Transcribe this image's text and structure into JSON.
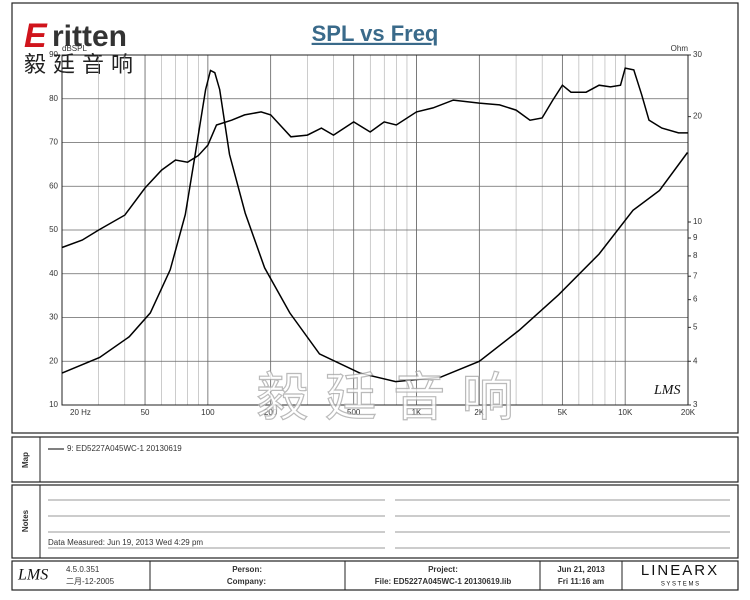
{
  "header": {
    "logo_mark": "E",
    "logo": "ritten",
    "logo_sub": "毅 廷 音 响",
    "watermark": "毅 廷 音 响"
  },
  "chart_data": {
    "type": "line",
    "title": "SPL vs Freq",
    "ylabel": "dBSPL",
    "y2label": "Ohm",
    "corner_mark": "LMS",
    "log_x": true,
    "log_y2": true,
    "grid": true,
    "xlim": [
      20,
      20000
    ],
    "xticks": [
      {
        "value": 20,
        "label": "20 Hz"
      },
      50,
      100,
      200,
      500,
      {
        "value": 1000,
        "label": "1K"
      },
      {
        "value": 2000,
        "label": "2K"
      },
      {
        "value": 5000,
        "label": "5K"
      },
      {
        "value": 10000,
        "label": "10K"
      },
      {
        "value": 20000,
        "label": "20K"
      }
    ],
    "ylim": [
      10,
      90
    ],
    "yticks": [
      10,
      20,
      30,
      40,
      50,
      60,
      70,
      80,
      90
    ],
    "y2lim": [
      3,
      30
    ],
    "y2ticks": [
      3,
      4,
      5,
      6,
      7,
      8,
      9,
      10,
      20,
      30
    ],
    "series": [
      {
        "color": "#000000",
        "x": [
          20,
          25,
          30,
          40,
          50,
          60,
          70,
          80,
          90,
          100,
          110,
          130,
          150,
          180,
          200,
          250,
          300,
          350,
          400,
          500,
          600,
          700,
          800,
          1000,
          1200,
          1500,
          2000,
          2500,
          3000,
          3500,
          4000,
          4500,
          5000,
          5500,
          6500,
          7500,
          8500,
          9500,
          10000,
          11000,
          12000,
          13000,
          15000,
          18000,
          20000
        ],
        "values": [
          46,
          47.7,
          50,
          53.4,
          59.6,
          63.7,
          66,
          65.5,
          67,
          69.4,
          74,
          75.1,
          76.3,
          77,
          76.3,
          71.3,
          71.7,
          73.3,
          71.7,
          74.7,
          72.4,
          74.7,
          74,
          77,
          77.9,
          79.7,
          79,
          78.6,
          77.4,
          75.1,
          75.6,
          79.7,
          83.1,
          81.5,
          81.5,
          83.1,
          82.7,
          83.1,
          87,
          86.6,
          80.9,
          75.1,
          73.3,
          72.2,
          72.2
        ]
      },
      {
        "color": "#000000",
        "axis": "y2",
        "x": [
          20,
          30.3,
          42,
          53,
          66,
          78,
          87,
          97.5,
          103,
          108,
          114,
          127,
          151,
          187,
          247,
          343,
          535,
          794,
          1300,
          2000,
          3100,
          4800,
          7500,
          10900,
          14600,
          19900
        ],
        "values": [
          3.7,
          4.1,
          4.7,
          5.5,
          7.3,
          10.5,
          15.6,
          23.9,
          27.1,
          26.7,
          23.9,
          15.6,
          10.6,
          7.4,
          5.5,
          4.2,
          3.7,
          3.5,
          3.6,
          4.0,
          4.9,
          6.2,
          8.1,
          10.8,
          12.3,
          15.8
        ]
      }
    ]
  },
  "map": {
    "label": "Map",
    "legend": "9: ED5227A045WC-1  20130619"
  },
  "notes": {
    "label": "Notes",
    "text": "Data Measured: Jun 19, 2013  Wed  4:29 pm"
  },
  "footer": {
    "logo": "LMS",
    "version": "4.5.0.351",
    "build_date": "二月-12-2005",
    "person": "Person:",
    "company": "Company:",
    "project": "Project:",
    "file": "File: ED5227A045WC-1  20130619.lib",
    "date": "Jun 21, 2013",
    "time": "Fri 11:16 am",
    "brand": "LINEARX",
    "brand_sub": "S Y S T E M S"
  }
}
